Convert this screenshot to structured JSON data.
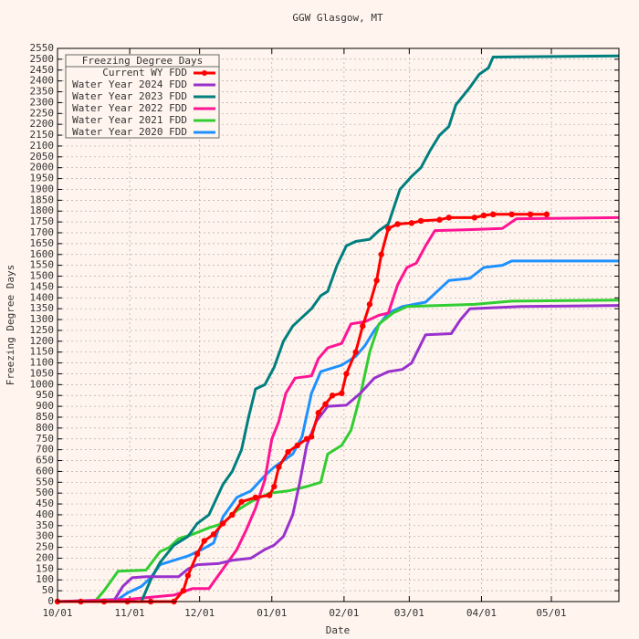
{
  "chart_data": {
    "type": "line",
    "title": "GGW Glasgow, MT",
    "xlabel": "Date",
    "ylabel": "Freezing Degree Days",
    "legend_title": "Freezing Degree Days",
    "legend": "upper left",
    "grid": true,
    "xlim": [
      0,
      241
    ],
    "xticks": [
      {
        "value": 0,
        "label": "10/01"
      },
      {
        "value": 31,
        "label": "11/01"
      },
      {
        "value": 61,
        "label": "12/01"
      },
      {
        "value": 92,
        "label": "01/01"
      },
      {
        "value": 123,
        "label": "02/01"
      },
      {
        "value": 151,
        "label": "03/01"
      },
      {
        "value": 182,
        "label": "04/01"
      },
      {
        "value": 212,
        "label": "05/01"
      }
    ],
    "ylim": [
      0,
      2550
    ],
    "yticks": [
      0,
      50,
      100,
      150,
      200,
      250,
      300,
      350,
      400,
      450,
      500,
      550,
      600,
      650,
      700,
      750,
      800,
      850,
      900,
      950,
      1000,
      1050,
      1100,
      1150,
      1200,
      1250,
      1300,
      1350,
      1400,
      1450,
      1500,
      1550,
      1600,
      1650,
      1700,
      1750,
      1800,
      1850,
      1900,
      1950,
      2000,
      2050,
      2100,
      2150,
      2200,
      2250,
      2300,
      2350,
      2400,
      2450,
      2500,
      2550
    ],
    "series": [
      {
        "name": "Current WY FDD",
        "color": "#ff0000",
        "markers": true,
        "x": [
          0,
          10,
          20,
          30,
          40,
          50,
          54,
          56,
          60,
          63,
          67,
          71,
          75,
          79,
          85,
          91,
          93,
          95,
          99,
          103,
          107,
          109,
          112,
          115,
          118,
          122,
          124,
          128,
          131,
          134,
          137,
          139,
          142,
          146,
          152,
          156,
          164,
          168,
          179,
          183,
          187,
          195,
          203,
          210
        ],
        "values": [
          0,
          0,
          0,
          0,
          0,
          0,
          50,
          120,
          220,
          280,
          310,
          360,
          400,
          460,
          480,
          490,
          530,
          620,
          690,
          720,
          750,
          760,
          870,
          910,
          950,
          960,
          1050,
          1150,
          1270,
          1370,
          1480,
          1600,
          1720,
          1740,
          1745,
          1755,
          1760,
          1770,
          1770,
          1780,
          1785,
          1785,
          1785,
          1785
        ]
      },
      {
        "name": "Water Year 2024 FDD",
        "color": "#9932cc",
        "x": [
          0,
          24,
          28,
          32,
          38,
          52,
          56,
          60,
          69,
          75,
          83,
          89,
          93,
          97,
          101,
          104,
          107,
          111,
          116,
          124,
          130,
          136,
          142,
          148,
          152,
          158,
          169,
          173,
          177,
          199,
          241
        ],
        "values": [
          0,
          0,
          70,
          110,
          115,
          115,
          150,
          170,
          175,
          190,
          200,
          240,
          260,
          300,
          400,
          550,
          720,
          830,
          900,
          905,
          960,
          1030,
          1060,
          1070,
          1100,
          1230,
          1235,
          1300,
          1350,
          1360,
          1365
        ]
      },
      {
        "name": "Water Year 2023 FDD",
        "color": "#007f7f",
        "x": [
          0,
          36,
          40,
          44,
          50,
          56,
          60,
          65,
          71,
          75,
          79,
          82,
          85,
          89,
          93,
          97,
          101,
          105,
          109,
          113,
          116,
          120,
          124,
          128,
          134,
          138,
          142,
          147,
          152,
          156,
          160,
          164,
          168,
          171,
          177,
          181,
          185,
          187,
          241
        ],
        "values": [
          0,
          0,
          100,
          180,
          260,
          300,
          360,
          400,
          540,
          600,
          700,
          850,
          980,
          1000,
          1080,
          1200,
          1270,
          1310,
          1350,
          1410,
          1430,
          1550,
          1640,
          1660,
          1670,
          1710,
          1740,
          1900,
          1960,
          2000,
          2080,
          2150,
          2190,
          2290,
          2370,
          2430,
          2460,
          2510,
          2515
        ]
      },
      {
        "name": "Water Year 2022 FDD",
        "color": "#ff1493",
        "x": [
          0,
          30,
          50,
          58,
          65,
          69,
          73,
          77,
          81,
          85,
          89,
          92,
          95,
          98,
          102,
          109,
          112,
          116,
          122,
          126,
          132,
          138,
          142,
          146,
          150,
          154,
          158,
          162,
          179,
          191,
          197,
          241
        ],
        "values": [
          0,
          10,
          30,
          60,
          60,
          120,
          180,
          240,
          330,
          430,
          560,
          750,
          830,
          960,
          1030,
          1040,
          1120,
          1170,
          1190,
          1280,
          1290,
          1320,
          1330,
          1460,
          1540,
          1560,
          1640,
          1710,
          1715,
          1720,
          1765,
          1770
        ]
      },
      {
        "name": "Water Year 2021 FDD",
        "color": "#32cd32",
        "x": [
          0,
          16,
          20,
          26,
          38,
          44,
          48,
          52,
          58,
          65,
          71,
          77,
          83,
          91,
          99,
          107,
          113,
          116,
          122,
          126,
          130,
          134,
          138,
          144,
          150,
          179,
          195,
          241
        ],
        "values": [
          0,
          0,
          50,
          140,
          145,
          230,
          250,
          290,
          310,
          340,
          360,
          420,
          460,
          500,
          510,
          530,
          550,
          680,
          720,
          790,
          950,
          1150,
          1280,
          1330,
          1360,
          1370,
          1385,
          1390
        ]
      },
      {
        "name": "Water Year 2020 FDD",
        "color": "#1e90ff",
        "x": [
          0,
          26,
          30,
          36,
          40,
          44,
          50,
          56,
          62,
          67,
          71,
          77,
          83,
          89,
          93,
          101,
          105,
          109,
          113,
          122,
          128,
          132,
          136,
          142,
          148,
          158,
          164,
          168,
          177,
          183,
          191,
          195,
          241
        ],
        "values": [
          0,
          10,
          40,
          70,
          110,
          170,
          190,
          210,
          240,
          270,
          390,
          480,
          510,
          580,
          620,
          680,
          760,
          960,
          1060,
          1090,
          1130,
          1180,
          1250,
          1330,
          1360,
          1380,
          1440,
          1480,
          1490,
          1540,
          1550,
          1570,
          1570
        ]
      }
    ]
  }
}
